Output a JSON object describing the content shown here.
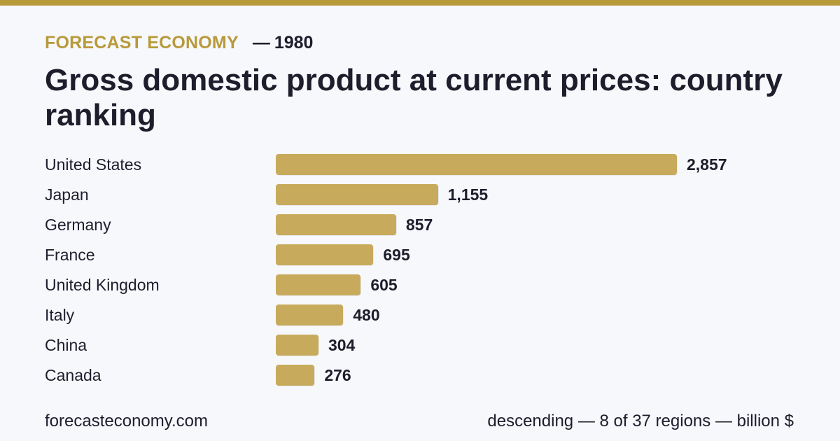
{
  "header": {
    "brand": "FORECAST ECONOMY",
    "dash": "—",
    "year": "1980",
    "title": "Gross domestic product at current prices: country ranking"
  },
  "colors": {
    "accent": "#b89a3b",
    "bar": "#c7aa5c",
    "text": "#1d1d2c",
    "background": "#f7f8fc"
  },
  "chart_data": {
    "type": "bar",
    "orientation": "horizontal",
    "title": "Gross domestic product at current prices: country ranking",
    "categories": [
      "United States",
      "Japan",
      "Germany",
      "France",
      "United Kingdom",
      "Italy",
      "China",
      "Canada"
    ],
    "values": [
      2857,
      1155,
      857,
      695,
      605,
      480,
      304,
      276
    ],
    "value_labels": [
      "2,857",
      "1,155",
      "857",
      "695",
      "605",
      "480",
      "304",
      "276"
    ],
    "xlim": [
      0,
      2857
    ],
    "grid": false,
    "sort": "descending"
  },
  "footer": {
    "site": "forecasteconomy.com",
    "note": "descending — 8 of 37 regions — billion $"
  }
}
